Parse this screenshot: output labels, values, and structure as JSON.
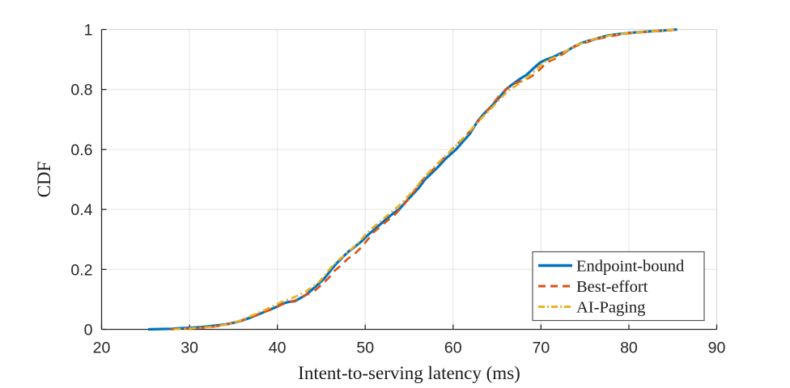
{
  "chart_data": {
    "type": "line",
    "title": "",
    "xlabel": "Intent-to-serving latency (ms)",
    "ylabel": "CDF",
    "xlim": [
      20,
      90
    ],
    "ylim": [
      0,
      1
    ],
    "x_ticks": [
      20,
      30,
      40,
      50,
      60,
      70,
      80,
      90
    ],
    "x_tick_labels": [
      "20",
      "30",
      "40",
      "50",
      "60",
      "70",
      "80",
      "90"
    ],
    "y_ticks": [
      0,
      0.2,
      0.4,
      0.6,
      0.8,
      1
    ],
    "y_tick_labels": [
      "0",
      "0.2",
      "0.4",
      "0.6",
      "0.8",
      "1"
    ],
    "grid": true,
    "legend": {
      "position": "bottom-right",
      "entries": [
        "Endpoint-bound",
        "Best-effort",
        "AI-Paging"
      ]
    },
    "colors": {
      "axis": "#262626",
      "grid": "#e6e6e6",
      "box_light": "#d9d9d9",
      "background": "#ffffff",
      "series_blue": "#0072BD",
      "series_red": "#D95319",
      "series_yellow": "#EDB120"
    },
    "series": [
      {
        "name": "Endpoint-bound",
        "color": "#0072BD",
        "style": "solid",
        "width": 3.2,
        "points": [
          [
            25.3,
            0.0
          ],
          [
            26.5,
            0.001
          ],
          [
            28.0,
            0.002
          ],
          [
            29.2,
            0.004
          ],
          [
            30.0,
            0.005
          ],
          [
            31.5,
            0.008
          ],
          [
            33.0,
            0.013
          ],
          [
            34.0,
            0.016
          ],
          [
            35.0,
            0.022
          ],
          [
            36.0,
            0.03
          ],
          [
            37.0,
            0.04
          ],
          [
            38.0,
            0.052
          ],
          [
            39.0,
            0.064
          ],
          [
            40.0,
            0.076
          ],
          [
            40.6,
            0.086
          ],
          [
            41.2,
            0.091
          ],
          [
            42.0,
            0.094
          ],
          [
            42.6,
            0.104
          ],
          [
            43.3,
            0.116
          ],
          [
            44.0,
            0.134
          ],
          [
            44.7,
            0.152
          ],
          [
            45.4,
            0.172
          ],
          [
            46.1,
            0.198
          ],
          [
            46.8,
            0.222
          ],
          [
            47.5,
            0.243
          ],
          [
            48.2,
            0.262
          ],
          [
            49.0,
            0.28
          ],
          [
            49.6,
            0.294
          ],
          [
            50.2,
            0.312
          ],
          [
            51.0,
            0.332
          ],
          [
            51.7,
            0.35
          ],
          [
            52.4,
            0.368
          ],
          [
            53.1,
            0.385
          ],
          [
            53.9,
            0.402
          ],
          [
            54.6,
            0.425
          ],
          [
            55.3,
            0.447
          ],
          [
            56.1,
            0.472
          ],
          [
            56.8,
            0.5
          ],
          [
            57.6,
            0.522
          ],
          [
            58.3,
            0.542
          ],
          [
            59.1,
            0.568
          ],
          [
            59.8,
            0.586
          ],
          [
            60.4,
            0.602
          ],
          [
            61.1,
            0.626
          ],
          [
            61.9,
            0.652
          ],
          [
            62.3,
            0.672
          ],
          [
            62.9,
            0.698
          ],
          [
            63.6,
            0.722
          ],
          [
            64.3,
            0.742
          ],
          [
            65.1,
            0.768
          ],
          [
            66.0,
            0.8
          ],
          [
            66.8,
            0.818
          ],
          [
            67.6,
            0.835
          ],
          [
            68.4,
            0.85
          ],
          [
            69.2,
            0.872
          ],
          [
            69.9,
            0.89
          ],
          [
            70.6,
            0.9
          ],
          [
            71.4,
            0.908
          ],
          [
            72.2,
            0.92
          ],
          [
            72.9,
            0.928
          ],
          [
            73.7,
            0.942
          ],
          [
            74.6,
            0.955
          ],
          [
            75.6,
            0.964
          ],
          [
            76.6,
            0.972
          ],
          [
            77.6,
            0.98
          ],
          [
            78.6,
            0.984
          ],
          [
            79.6,
            0.987
          ],
          [
            80.6,
            0.99
          ],
          [
            81.6,
            0.992
          ],
          [
            82.6,
            0.994
          ],
          [
            83.6,
            0.996
          ],
          [
            84.6,
            0.998
          ],
          [
            85.5,
            1.0
          ]
        ]
      },
      {
        "name": "Best-effort",
        "color": "#D95319",
        "style": "dashed",
        "width": 2.6,
        "points": [
          [
            27.8,
            0.0
          ],
          [
            29.5,
            0.002
          ],
          [
            31.0,
            0.004
          ],
          [
            32.5,
            0.008
          ],
          [
            33.5,
            0.012
          ],
          [
            34.5,
            0.018
          ],
          [
            35.5,
            0.025
          ],
          [
            36.5,
            0.035
          ],
          [
            37.5,
            0.047
          ],
          [
            38.5,
            0.058
          ],
          [
            39.5,
            0.068
          ],
          [
            40.3,
            0.08
          ],
          [
            41.0,
            0.088
          ],
          [
            42.0,
            0.096
          ],
          [
            42.8,
            0.108
          ],
          [
            43.5,
            0.118
          ],
          [
            44.3,
            0.13
          ],
          [
            45.0,
            0.148
          ],
          [
            45.8,
            0.17
          ],
          [
            46.5,
            0.195
          ],
          [
            47.3,
            0.215
          ],
          [
            48.0,
            0.235
          ],
          [
            48.8,
            0.252
          ],
          [
            49.5,
            0.272
          ],
          [
            50.3,
            0.3
          ],
          [
            51.0,
            0.325
          ],
          [
            51.8,
            0.345
          ],
          [
            52.5,
            0.362
          ],
          [
            53.3,
            0.38
          ],
          [
            54.0,
            0.402
          ],
          [
            54.8,
            0.43
          ],
          [
            55.5,
            0.458
          ],
          [
            56.3,
            0.49
          ],
          [
            57.0,
            0.515
          ],
          [
            57.8,
            0.535
          ],
          [
            58.5,
            0.558
          ],
          [
            59.3,
            0.582
          ],
          [
            60.0,
            0.605
          ],
          [
            60.8,
            0.628
          ],
          [
            61.5,
            0.648
          ],
          [
            62.3,
            0.672
          ],
          [
            63.0,
            0.7
          ],
          [
            63.8,
            0.725
          ],
          [
            64.5,
            0.752
          ],
          [
            65.3,
            0.78
          ],
          [
            66.0,
            0.8
          ],
          [
            66.6,
            0.815
          ],
          [
            67.2,
            0.822
          ],
          [
            67.8,
            0.828
          ],
          [
            68.4,
            0.835
          ],
          [
            69.0,
            0.845
          ],
          [
            69.7,
            0.862
          ],
          [
            70.4,
            0.882
          ],
          [
            71.0,
            0.895
          ],
          [
            71.8,
            0.905
          ],
          [
            72.5,
            0.918
          ],
          [
            73.2,
            0.932
          ],
          [
            74.0,
            0.945
          ],
          [
            75.0,
            0.955
          ],
          [
            76.0,
            0.965
          ],
          [
            77.0,
            0.972
          ],
          [
            78.0,
            0.978
          ],
          [
            79.0,
            0.983
          ],
          [
            80.0,
            0.987
          ],
          [
            81.0,
            0.99
          ],
          [
            82.0,
            0.992
          ],
          [
            83.0,
            0.994
          ],
          [
            84.0,
            0.996
          ],
          [
            85.0,
            0.998
          ],
          [
            85.8,
            1.0
          ]
        ]
      },
      {
        "name": "AI-Paging",
        "color": "#EDB120",
        "style": "dashdot",
        "width": 2.6,
        "points": [
          [
            28.2,
            0.0
          ],
          [
            30.0,
            0.003
          ],
          [
            31.5,
            0.006
          ],
          [
            33.0,
            0.01
          ],
          [
            34.0,
            0.015
          ],
          [
            35.0,
            0.022
          ],
          [
            36.0,
            0.032
          ],
          [
            37.0,
            0.045
          ],
          [
            38.0,
            0.058
          ],
          [
            38.8,
            0.068
          ],
          [
            39.5,
            0.078
          ],
          [
            40.2,
            0.088
          ],
          [
            41.0,
            0.098
          ],
          [
            41.8,
            0.106
          ],
          [
            42.5,
            0.115
          ],
          [
            43.3,
            0.128
          ],
          [
            44.0,
            0.142
          ],
          [
            44.8,
            0.16
          ],
          [
            45.5,
            0.185
          ],
          [
            46.2,
            0.21
          ],
          [
            47.0,
            0.232
          ],
          [
            47.8,
            0.252
          ],
          [
            48.5,
            0.27
          ],
          [
            49.2,
            0.288
          ],
          [
            50.0,
            0.315
          ],
          [
            50.8,
            0.338
          ],
          [
            51.5,
            0.355
          ],
          [
            52.2,
            0.372
          ],
          [
            53.0,
            0.392
          ],
          [
            53.8,
            0.412
          ],
          [
            54.5,
            0.432
          ],
          [
            55.3,
            0.458
          ],
          [
            56.0,
            0.482
          ],
          [
            56.8,
            0.51
          ],
          [
            57.5,
            0.532
          ],
          [
            58.3,
            0.555
          ],
          [
            59.0,
            0.575
          ],
          [
            59.8,
            0.598
          ],
          [
            60.5,
            0.618
          ],
          [
            61.3,
            0.642
          ],
          [
            62.0,
            0.665
          ],
          [
            62.8,
            0.69
          ],
          [
            63.5,
            0.712
          ],
          [
            64.3,
            0.735
          ],
          [
            65.0,
            0.758
          ],
          [
            65.8,
            0.782
          ],
          [
            66.5,
            0.8
          ],
          [
            67.3,
            0.815
          ],
          [
            68.0,
            0.83
          ],
          [
            68.8,
            0.848
          ],
          [
            69.5,
            0.868
          ],
          [
            70.2,
            0.888
          ],
          [
            71.0,
            0.9
          ],
          [
            71.8,
            0.91
          ],
          [
            72.5,
            0.922
          ],
          [
            73.3,
            0.936
          ],
          [
            74.0,
            0.948
          ],
          [
            75.0,
            0.958
          ],
          [
            76.0,
            0.968
          ],
          [
            77.0,
            0.975
          ],
          [
            78.0,
            0.981
          ],
          [
            79.0,
            0.985
          ],
          [
            80.0,
            0.988
          ],
          [
            81.0,
            0.991
          ],
          [
            82.0,
            0.993
          ],
          [
            83.0,
            0.995
          ],
          [
            84.0,
            0.997
          ],
          [
            85.3,
            1.0
          ]
        ]
      }
    ]
  }
}
